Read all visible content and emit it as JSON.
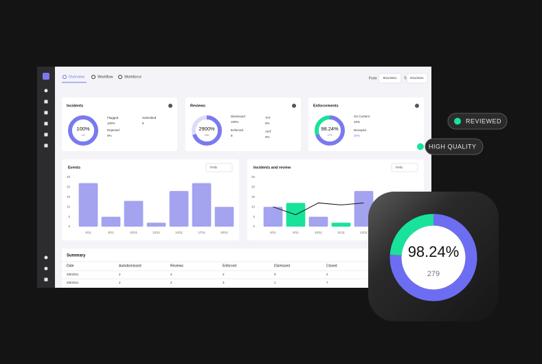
{
  "nav": {
    "tabs": [
      "Overview",
      "Workflow",
      "Workforce"
    ],
    "from_label": "From",
    "from_date": "8/11/2021",
    "to_label": "To",
    "to_date": "9/11/2021"
  },
  "cards": [
    {
      "title": "Incidents",
      "donut": {
        "center": "100%",
        "sub": "14",
        "segments": [
          {
            "value": 100,
            "color": "#7a7aee"
          }
        ]
      },
      "stats": [
        {
          "label": "Flagged",
          "value": "100%"
        },
        {
          "label": "Submitted",
          "value": "8"
        },
        {
          "label": "Rejected",
          "value": "0%"
        }
      ]
    },
    {
      "title": "Reviews",
      "donut": {
        "center": "2900%",
        "sub": "290",
        "segments": [
          {
            "value": 70,
            "color": "#7a7aee"
          },
          {
            "value": 30,
            "color": "#dcdcf7"
          }
        ]
      },
      "stats": [
        {
          "label": "Dismissed",
          "value": "100%"
        },
        {
          "label": "TAT",
          "value": "0%"
        },
        {
          "label": "Enforced",
          "value": "8"
        },
        {
          "label": "AHT",
          "value": "0%"
        }
      ]
    },
    {
      "title": "Enforcements",
      "donut": {
        "center": "98.24%",
        "sub": "279",
        "segments": [
          {
            "value": 70,
            "color": "#7a7aee"
          },
          {
            "value": 30,
            "color": "#19e39a"
          }
        ]
      },
      "stats": [
        {
          "label": "On Content",
          "value": "10%"
        },
        {
          "label": "Decayed",
          "value": "30%"
        }
      ]
    }
  ],
  "chart_data": [
    {
      "type": "bar",
      "title": "Events",
      "dropdown": "Daily",
      "categories": [
        "5/11",
        "8/11",
        "10/11",
        "12/11",
        "14/11",
        "17/11",
        "20/11"
      ],
      "series": [
        {
          "color": "#a3a3f0",
          "values": [
            22,
            5,
            13,
            2,
            18,
            22,
            10
          ]
        }
      ],
      "ylim": [
        0,
        25
      ],
      "yticks": [
        0,
        5,
        10,
        15,
        20,
        25
      ]
    },
    {
      "type": "bar",
      "title": "Incidents and review",
      "dropdown": "Daily",
      "categories": [
        "8/11",
        "9/11",
        "10/11",
        "11/11",
        "12/11"
      ],
      "series": [
        {
          "type": "bar",
          "colors": [
            "#a3a3f0",
            "#19e39a",
            "#a3a3f0",
            "#19e39a",
            "#a3a3f0"
          ],
          "values": [
            10,
            12,
            5,
            2,
            18
          ]
        },
        {
          "type": "line",
          "color": "#111111",
          "values": [
            10,
            6,
            12,
            11,
            12
          ]
        }
      ],
      "ylim": [
        0,
        25
      ],
      "yticks": [
        0,
        5,
        10,
        15,
        20,
        25
      ]
    }
  ],
  "summary": {
    "title": "Summary",
    "columns": [
      "Date",
      "Autodismissed",
      "Reviews",
      "Enforced",
      "Dismissed",
      "Closed"
    ],
    "rows": [
      [
        "3/8/2021",
        2,
        2,
        2,
        0,
        2
      ],
      [
        "3/8/2021",
        2,
        2,
        3,
        1,
        7
      ]
    ]
  },
  "pills": [
    "REVIEWED",
    "HIGH QUALITY"
  ],
  "tile": {
    "center": "98.24%",
    "sub": "279",
    "segments": [
      {
        "value": 76,
        "color": "#6d6df2"
      },
      {
        "value": 24,
        "color": "#19e39a"
      }
    ]
  }
}
